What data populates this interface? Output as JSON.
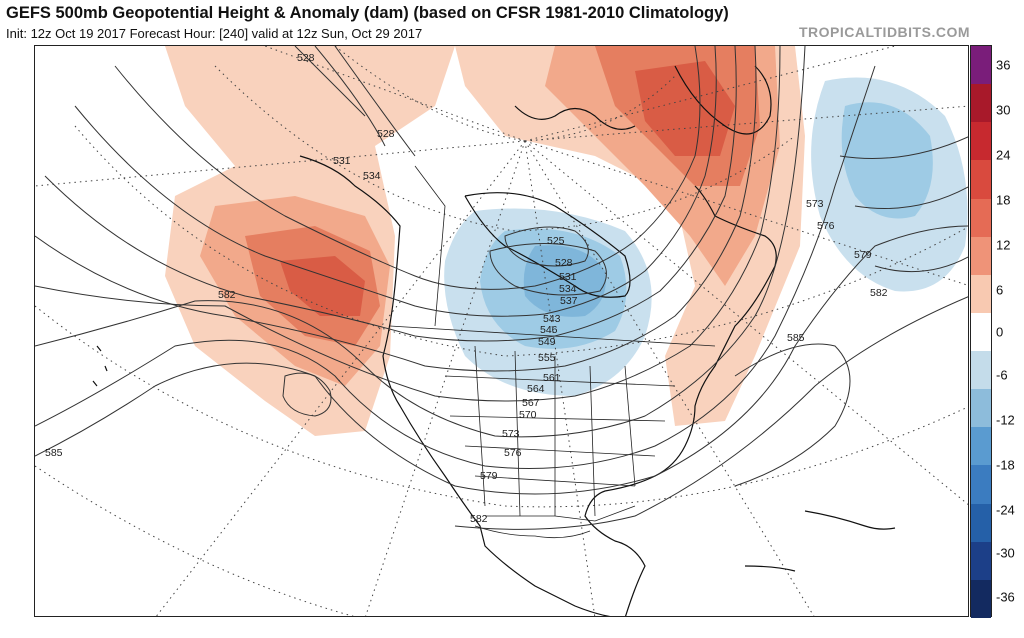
{
  "header": {
    "title": "GEFS 500mb Geopotential Height & Anomaly (dam) (based on CFSR 1981-2010 Climatology)",
    "subtitle": "Init: 12z Oct 19 2017   Forecast Hour: [240]   valid at 12z Sun, Oct 29 2017",
    "brand": "TROPICALTIDBITS.COM"
  },
  "colorbar": {
    "labels": [
      "36",
      "30",
      "24",
      "18",
      "12",
      "6",
      "0",
      "-6",
      "-12",
      "-18",
      "-24",
      "-30",
      "-36"
    ],
    "colors": [
      "#7a1d7a",
      "#a8192a",
      "#c7292f",
      "#d94a3e",
      "#e56b55",
      "#ef9378",
      "#f8c9b1",
      "#ffffff",
      "#c4dcea",
      "#8dbcdb",
      "#5a9bd0",
      "#3b7cc0",
      "#2560a8",
      "#1c3f88",
      "#132a60"
    ]
  },
  "contour_labels": [
    "528",
    "528",
    "531",
    "534",
    "525",
    "528",
    "531",
    "534",
    "537",
    "543",
    "546",
    "549",
    "555",
    "561",
    "564",
    "567",
    "570",
    "573",
    "576",
    "579",
    "582",
    "582",
    "585",
    "582",
    "579",
    "576",
    "573",
    "585"
  ],
  "anomaly_colors": {
    "pos_light": "#f9d2bd",
    "pos_mid": "#f2a98b",
    "pos_strong": "#e57e60",
    "pos_max": "#d95c45",
    "neg_light": "#c9e0ee",
    "neg_mid": "#9ecbe5",
    "neg_strong": "#7fb6da"
  }
}
